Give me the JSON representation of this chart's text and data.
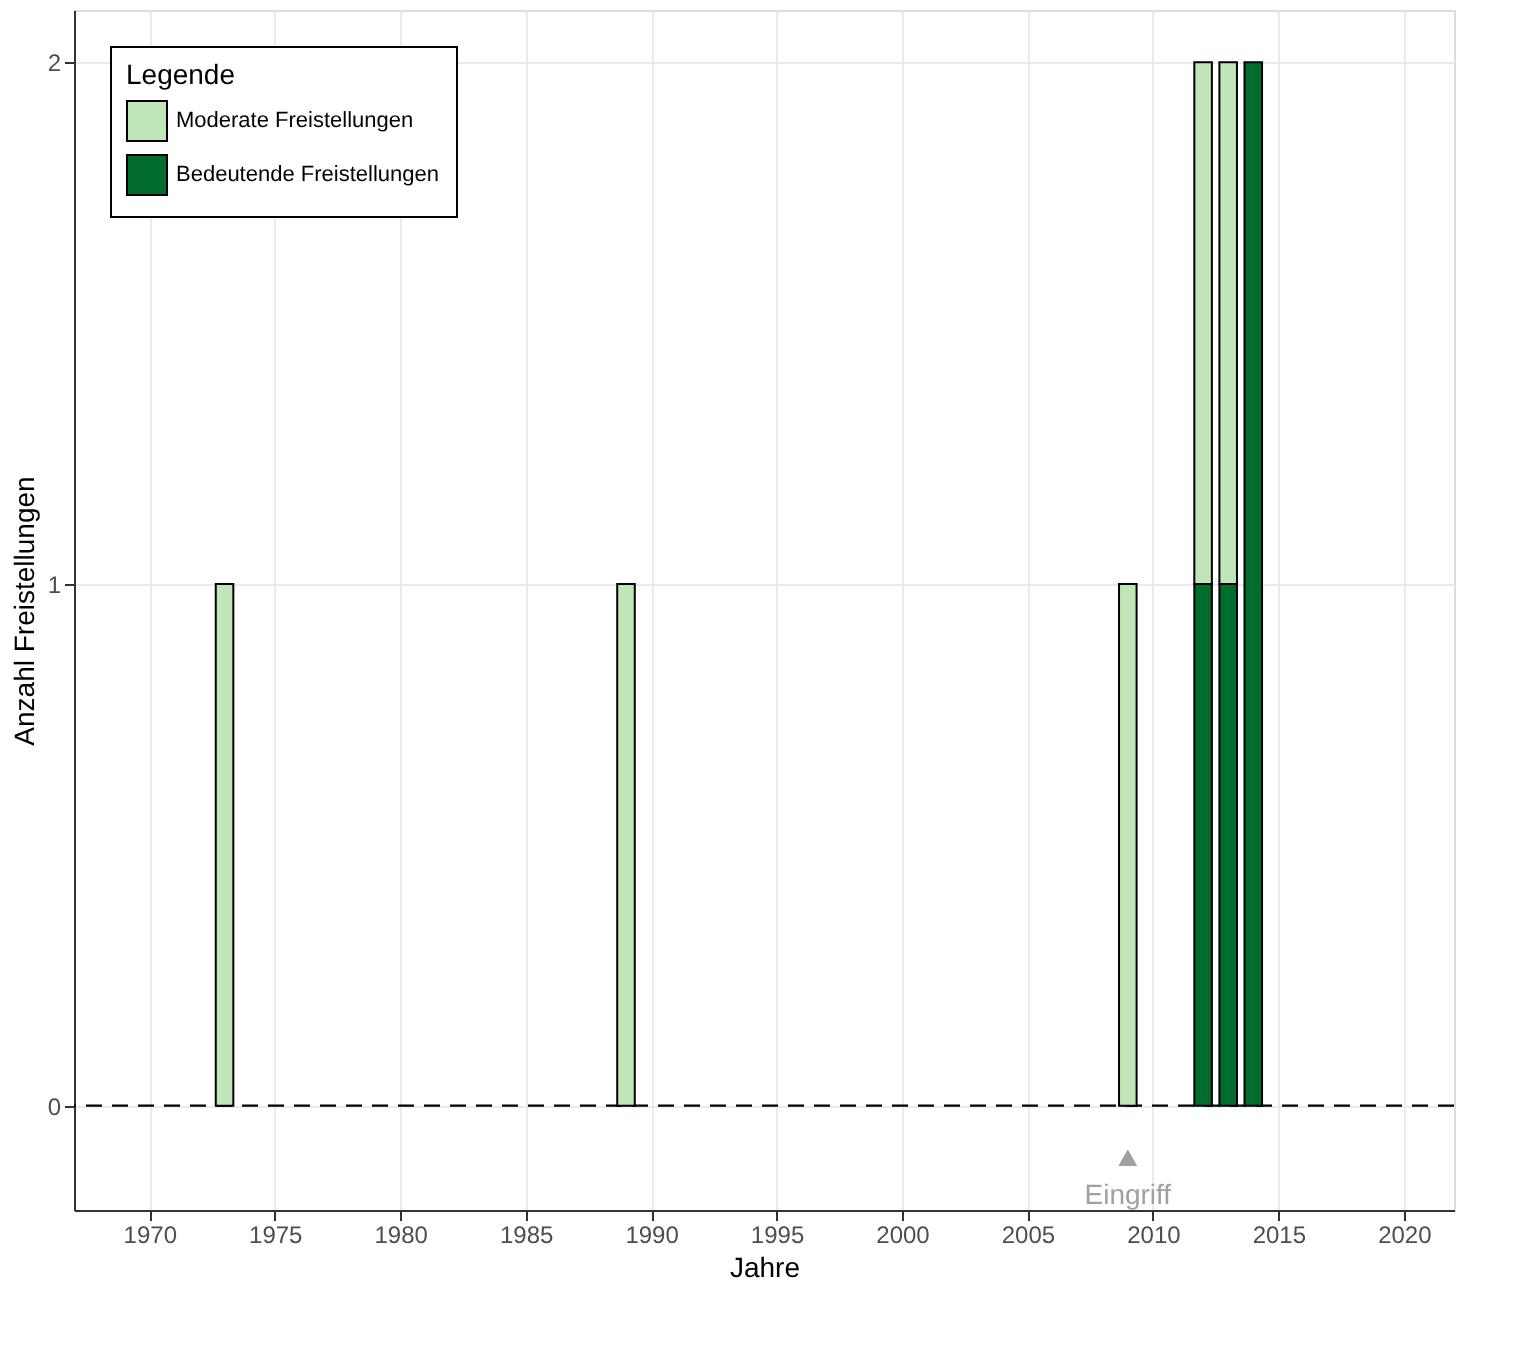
{
  "chart_data": {
    "type": "bar",
    "stacked": true,
    "xlabel": "Jahre",
    "ylabel": "Anzahl Freistellungen",
    "legend_title": "Legende",
    "legend": "top left",
    "grid": true,
    "x": [
      1973,
      1989,
      2009,
      2012,
      2013,
      2014
    ],
    "series": [
      {
        "name": "Bedeutende Freistellungen",
        "color": "#006d2c",
        "values": [
          0,
          0,
          0,
          1,
          1,
          2
        ]
      },
      {
        "name": "Moderate Freistellungen",
        "color": "#bfe5b9",
        "values": [
          1,
          1,
          1,
          1,
          1,
          0
        ]
      }
    ],
    "xlim": [
      1967,
      2022
    ],
    "xticks": [
      1970,
      1975,
      1980,
      1985,
      1990,
      1995,
      2000,
      2005,
      2010,
      2015,
      2020
    ],
    "ylim": [
      -0.2,
      2.1
    ],
    "yticks": [
      0,
      1,
      2
    ],
    "ref_lines": [
      {
        "axis": "y",
        "value": 0,
        "label": null,
        "color": "#000000",
        "line_style": "dashed"
      }
    ],
    "annotations": [
      {
        "text": "Eingriff",
        "x": 2009,
        "y": -0.1
      }
    ]
  }
}
